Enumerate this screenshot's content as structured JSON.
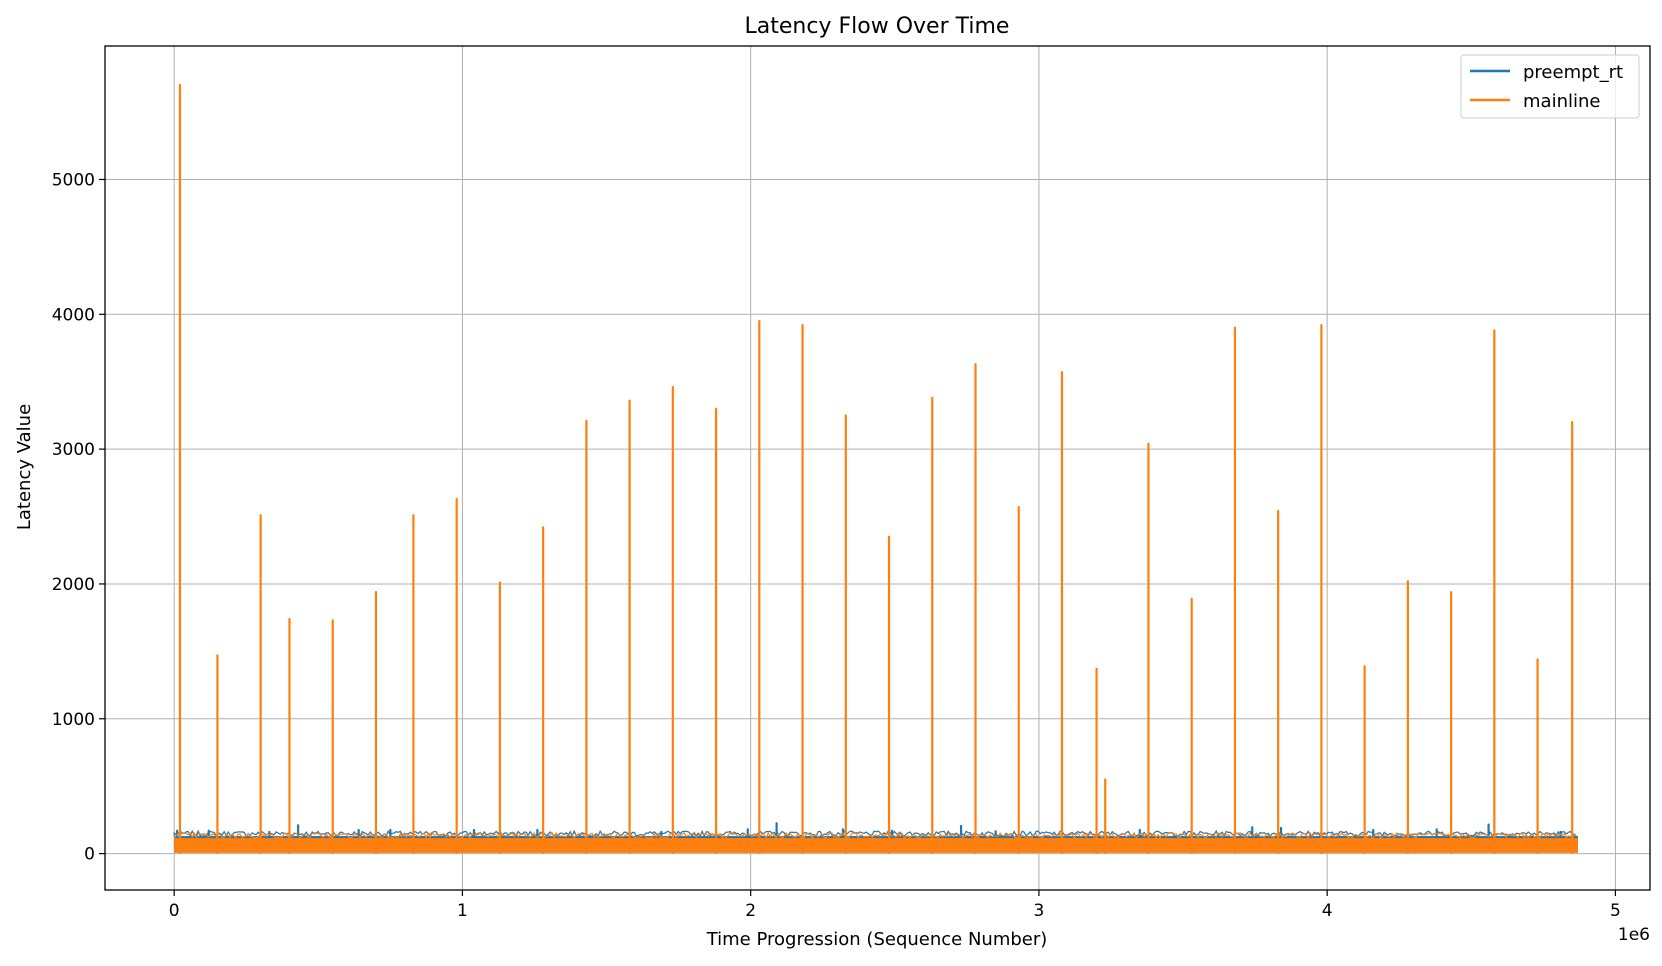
{
  "chart_data": {
    "type": "line",
    "title": "Latency Flow Over Time",
    "xlabel": "Time Progression (Sequence Number)",
    "ylabel": "Latency Value",
    "x_offset_label": "1e6",
    "xlim": [
      -0.24,
      5.12
    ],
    "ylim": [
      -270,
      5990
    ],
    "x_unit_scale": 1000000,
    "x_ticks": [
      0,
      1,
      2,
      3,
      4,
      5
    ],
    "x_tick_labels": [
      "0",
      "1",
      "2",
      "3",
      "4",
      "5"
    ],
    "y_ticks": [
      0,
      1000,
      2000,
      3000,
      4000,
      5000
    ],
    "y_tick_labels": [
      "0",
      "1000",
      "2000",
      "3000",
      "4000",
      "5000"
    ],
    "grid": true,
    "legend_position": "top-right",
    "series": [
      {
        "name": "preempt_rt",
        "color": "#1f77b4",
        "x_range": [
          0,
          4.87
        ],
        "band": [
          25,
          130
        ],
        "spikes": [
          {
            "x": 0.01,
            "y": 170
          },
          {
            "x": 0.12,
            "y": 170
          },
          {
            "x": 0.33,
            "y": 160
          },
          {
            "x": 0.43,
            "y": 210
          },
          {
            "x": 0.64,
            "y": 175
          },
          {
            "x": 0.75,
            "y": 175
          },
          {
            "x": 1.04,
            "y": 175
          },
          {
            "x": 1.26,
            "y": 175
          },
          {
            "x": 1.69,
            "y": 160
          },
          {
            "x": 1.99,
            "y": 180
          },
          {
            "x": 2.09,
            "y": 225
          },
          {
            "x": 2.32,
            "y": 180
          },
          {
            "x": 2.49,
            "y": 170
          },
          {
            "x": 2.73,
            "y": 205
          },
          {
            "x": 2.85,
            "y": 165
          },
          {
            "x": 3.35,
            "y": 175
          },
          {
            "x": 3.74,
            "y": 195
          },
          {
            "x": 3.84,
            "y": 190
          },
          {
            "x": 4.16,
            "y": 175
          },
          {
            "x": 4.38,
            "y": 180
          },
          {
            "x": 4.56,
            "y": 215
          },
          {
            "x": 4.81,
            "y": 160
          }
        ]
      },
      {
        "name": "mainline",
        "color": "#ff7f0e",
        "x_range": [
          0,
          4.87
        ],
        "band": [
          5,
          115
        ],
        "spikes": [
          {
            "x": 0.02,
            "y": 5700
          },
          {
            "x": 0.15,
            "y": 1470
          },
          {
            "x": 0.3,
            "y": 2510
          },
          {
            "x": 0.4,
            "y": 1740
          },
          {
            "x": 0.55,
            "y": 1730
          },
          {
            "x": 0.7,
            "y": 1940
          },
          {
            "x": 0.83,
            "y": 2510
          },
          {
            "x": 0.98,
            "y": 2630
          },
          {
            "x": 1.13,
            "y": 2010
          },
          {
            "x": 1.28,
            "y": 2420
          },
          {
            "x": 1.43,
            "y": 3210
          },
          {
            "x": 1.58,
            "y": 3360
          },
          {
            "x": 1.73,
            "y": 3460
          },
          {
            "x": 1.88,
            "y": 3300
          },
          {
            "x": 2.03,
            "y": 3950
          },
          {
            "x": 2.18,
            "y": 3920
          },
          {
            "x": 2.33,
            "y": 3250
          },
          {
            "x": 2.48,
            "y": 2350
          },
          {
            "x": 2.63,
            "y": 3380
          },
          {
            "x": 2.78,
            "y": 3630
          },
          {
            "x": 2.93,
            "y": 2570
          },
          {
            "x": 3.08,
            "y": 3570
          },
          {
            "x": 3.2,
            "y": 1370
          },
          {
            "x": 3.23,
            "y": 550
          },
          {
            "x": 3.38,
            "y": 3040
          },
          {
            "x": 3.53,
            "y": 1890
          },
          {
            "x": 3.68,
            "y": 3900
          },
          {
            "x": 3.83,
            "y": 2540
          },
          {
            "x": 3.98,
            "y": 3920
          },
          {
            "x": 4.13,
            "y": 1390
          },
          {
            "x": 4.28,
            "y": 2020
          },
          {
            "x": 4.43,
            "y": 1940
          },
          {
            "x": 4.58,
            "y": 3880
          },
          {
            "x": 4.73,
            "y": 1440
          },
          {
            "x": 4.85,
            "y": 3200
          }
        ]
      }
    ]
  }
}
